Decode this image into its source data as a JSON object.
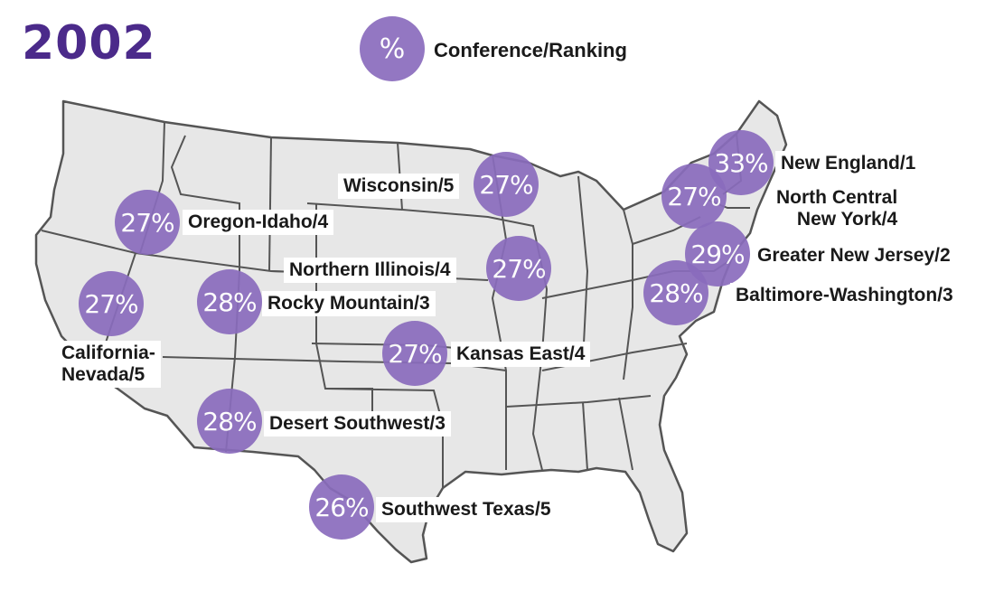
{
  "year": "2002",
  "colors": {
    "accent": "#8a6cbd",
    "title": "#4b2a8a",
    "land": "#e7e7e7",
    "border": "#555555"
  },
  "legend": {
    "symbol": "%",
    "label": "Conference/Ranking"
  },
  "conferences": [
    {
      "pct": "27%",
      "label": "Oregon-Idaho/4"
    },
    {
      "pct": "27%",
      "label": "California-\nNevada/5"
    },
    {
      "pct": "28%",
      "label": "Rocky Mountain/3"
    },
    {
      "pct": "28%",
      "label": "Desert Southwest/3"
    },
    {
      "pct": "26%",
      "label": "Southwest Texas/5"
    },
    {
      "pct": "27%",
      "label": "Kansas East/4"
    },
    {
      "pct": "27%",
      "label": "Northern Illinois/4"
    },
    {
      "pct": "27%",
      "label": "Wisconsin/5"
    },
    {
      "pct": "33%",
      "label": "New England/1"
    },
    {
      "pct": "27%",
      "label": "North Central\nNew York/4"
    },
    {
      "pct": "29%",
      "label": "Greater New Jersey/2"
    },
    {
      "pct": "28%",
      "label": "Baltimore-Washington/3"
    }
  ]
}
